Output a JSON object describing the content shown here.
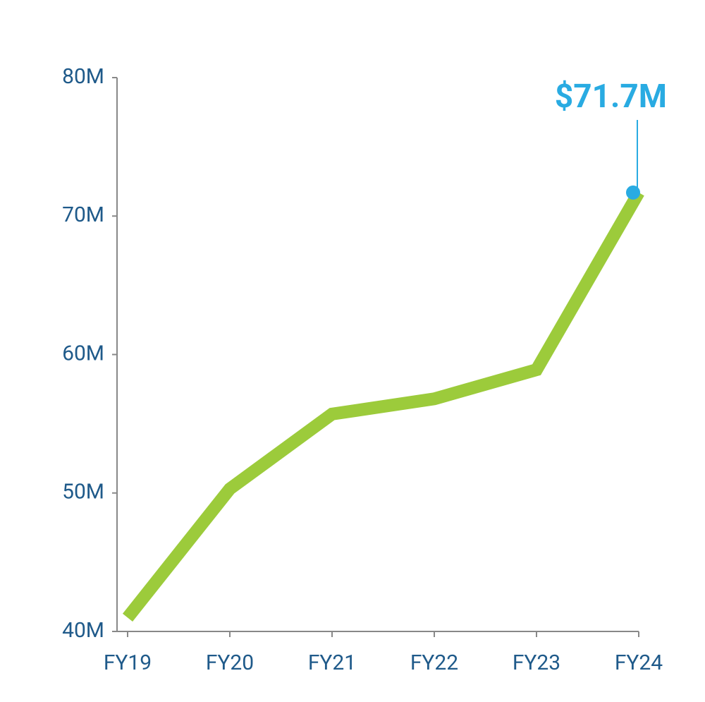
{
  "chart_data": {
    "type": "line",
    "categories": [
      "FY19",
      "FY20",
      "FY21",
      "FY22",
      "FY23",
      "FY24"
    ],
    "series": [
      {
        "color": "#9ccb3b",
        "values": [
          41000000,
          50300000,
          55700000,
          56800000,
          58900000,
          71700000
        ],
        "value_labels": [
          null,
          null,
          null,
          null,
          null,
          "$71.7M"
        ]
      }
    ],
    "highlight_color": "#29abe2",
    "ylim": [
      40000000,
      80000000
    ],
    "yticks": [
      {
        "value": 40000000,
        "label": "40M"
      },
      {
        "value": 50000000,
        "label": "50M"
      },
      {
        "value": 60000000,
        "label": "60M"
      },
      {
        "value": 70000000,
        "label": "70M"
      },
      {
        "value": 80000000,
        "label": "80M"
      }
    ]
  }
}
